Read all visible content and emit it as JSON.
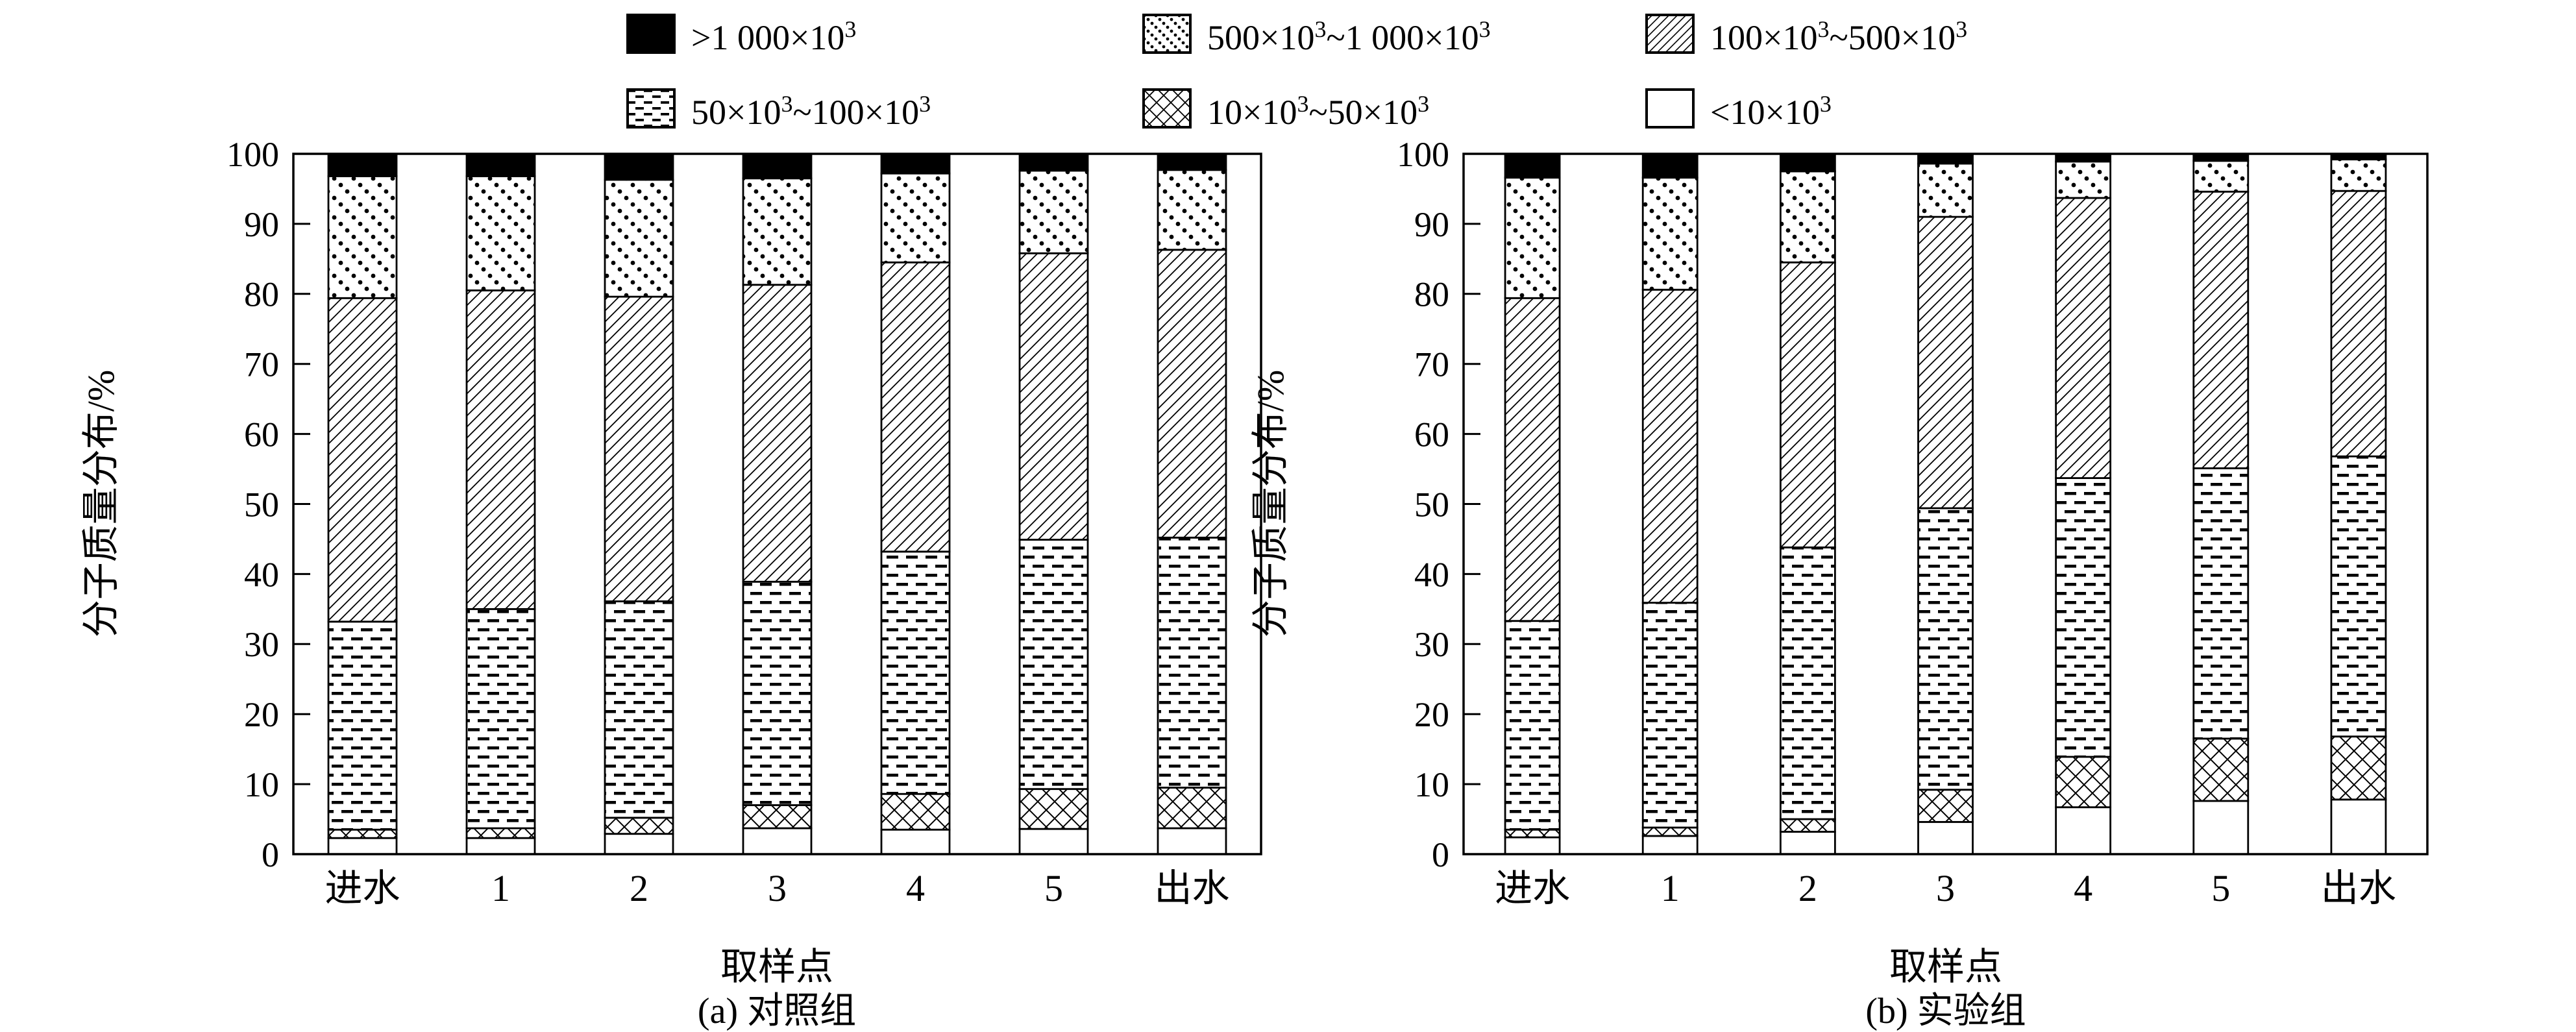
{
  "page": {
    "background": "#ffffff",
    "ink": "#000000"
  },
  "legend": {
    "rows": [
      [
        {
          "pattern": "solid",
          "label": ">1 000×10^3"
        },
        {
          "pattern": "dots",
          "label": "500×10^3~1 000×10^3"
        },
        {
          "pattern": "diagonal",
          "label": "100×10^3~500×10^3"
        }
      ],
      [
        {
          "pattern": "dash",
          "label": "50×10^3~100×10^3"
        },
        {
          "pattern": "crosshatch",
          "label": "10×10^3~50×10^3"
        },
        {
          "pattern": "plain",
          "label": "<10×10^3"
        }
      ]
    ]
  },
  "chart_data": [
    {
      "type": "bar",
      "stacked": true,
      "title": "(a) 对照组",
      "xlabel": "取样点",
      "ylabel": "分子质量分布/%",
      "ylim": [
        0,
        100
      ],
      "yticks": [
        0,
        10,
        20,
        30,
        40,
        50,
        60,
        70,
        80,
        90,
        100
      ],
      "grid": false,
      "legend_position": "top",
      "categories": [
        "进水",
        "1",
        "2",
        "3",
        "4",
        "5",
        "出水"
      ],
      "series": [
        {
          "name": "<10×10^3",
          "pattern": "plain",
          "values": [
            2.3,
            2.3,
            2.9,
            3.7,
            3.5,
            3.6,
            3.7
          ]
        },
        {
          "name": "10×10^3~50×10^3",
          "pattern": "crosshatch",
          "values": [
            1.2,
            1.4,
            2.3,
            3.3,
            5.1,
            5.7,
            5.8
          ]
        },
        {
          "name": "50×10^3~100×10^3",
          "pattern": "dash",
          "values": [
            29.7,
            31.3,
            30.9,
            31.9,
            34.6,
            35.6,
            35.7
          ]
        },
        {
          "name": "100×10^3~500×10^3",
          "pattern": "diagonal",
          "values": [
            46.2,
            45.5,
            43.5,
            42.4,
            41.3,
            40.9,
            41.1
          ]
        },
        {
          "name": "500×10^3~1 000×10^3",
          "pattern": "dots",
          "values": [
            17.4,
            16.3,
            16.7,
            15.2,
            12.7,
            11.8,
            11.4
          ]
        },
        {
          "name": ">1 000×10^3",
          "pattern": "solid",
          "values": [
            3.2,
            3.2,
            3.7,
            3.5,
            2.8,
            2.4,
            2.3
          ]
        }
      ]
    },
    {
      "type": "bar",
      "stacked": true,
      "title": "(b) 实验组",
      "xlabel": "取样点",
      "ylabel": "分子质量分布/%",
      "ylim": [
        0,
        100
      ],
      "yticks": [
        0,
        10,
        20,
        30,
        40,
        50,
        60,
        70,
        80,
        90,
        100
      ],
      "grid": false,
      "legend_position": "top",
      "categories": [
        "进水",
        "1",
        "2",
        "3",
        "4",
        "5",
        "出水"
      ],
      "series": [
        {
          "name": "<10×10^3",
          "pattern": "plain",
          "values": [
            2.4,
            2.6,
            3.2,
            4.6,
            6.7,
            7.6,
            7.8
          ]
        },
        {
          "name": "10×10^3~50×10^3",
          "pattern": "crosshatch",
          "values": [
            1.1,
            1.2,
            1.8,
            4.6,
            7.2,
            8.9,
            9.0
          ]
        },
        {
          "name": "50×10^3~100×10^3",
          "pattern": "dash",
          "values": [
            29.8,
            32.1,
            38.8,
            40.2,
            39.8,
            38.6,
            40.0
          ]
        },
        {
          "name": "100×10^3~500×10^3",
          "pattern": "diagonal",
          "values": [
            46.1,
            44.7,
            40.7,
            41.6,
            40.0,
            39.5,
            37.9
          ]
        },
        {
          "name": "500×10^3~1 000×10^3",
          "pattern": "dots",
          "values": [
            17.2,
            16.0,
            13.0,
            7.6,
            5.2,
            4.4,
            4.5
          ]
        },
        {
          "name": ">1 000×10^3",
          "pattern": "solid",
          "values": [
            3.4,
            3.4,
            2.5,
            1.4,
            1.1,
            1.0,
            0.8
          ]
        }
      ]
    }
  ]
}
